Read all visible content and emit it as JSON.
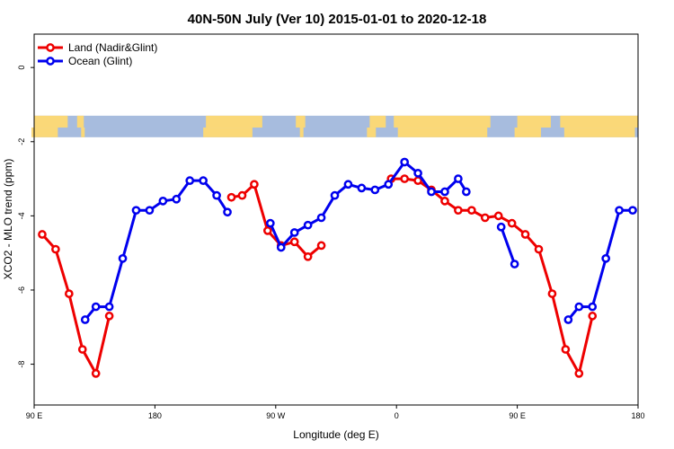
{
  "chart_data": {
    "type": "line",
    "title": "40N-50N July (Ver 10)   2015-01-01 to 2020-12-18",
    "xlabel": "Longitude (deg E)",
    "ylabel": "XCO2 - MLO trend (ppm)",
    "x_axis": {
      "range": [
        90,
        540
      ],
      "ticks": [
        {
          "x": 90,
          "label": "90 E"
        },
        {
          "x": 180,
          "label": "180"
        },
        {
          "x": 270,
          "label": "90 W"
        },
        {
          "x": 360,
          "label": "0"
        },
        {
          "x": 450,
          "label": "90 E"
        },
        {
          "x": 540,
          "label": "180"
        }
      ]
    },
    "y_axis": {
      "range": [
        -9.1,
        0.9
      ],
      "ticks": [
        0,
        -2,
        -4,
        -6,
        -8
      ]
    },
    "grid": false,
    "legend_position": "top-left",
    "map_strip": {
      "y_top": -1.3,
      "y_bottom": -1.88,
      "land_color": "#fad878",
      "ocean_color": "#a7bcde"
    },
    "series": [
      {
        "name": "Land (Nadir&Glint)",
        "color": "#ee0000",
        "points": [
          [
            [
              96,
              -4.5
            ],
            [
              106,
              -4.9
            ],
            [
              116,
              -6.1
            ],
            [
              126,
              -7.6
            ],
            [
              136,
              -8.25
            ],
            [
              146,
              -6.7
            ]
          ],
          [
            [
              237,
              -3.5
            ],
            [
              245,
              -3.45
            ],
            [
              254,
              -3.15
            ],
            [
              264,
              -4.4
            ],
            [
              274,
              -4.8
            ],
            [
              284,
              -4.7
            ],
            [
              294,
              -5.1
            ],
            [
              304,
              -4.8
            ]
          ],
          [
            [
              356,
              -3.0
            ],
            [
              366,
              -3.0
            ],
            [
              376,
              -3.05
            ],
            [
              386,
              -3.3
            ],
            [
              396,
              -3.6
            ],
            [
              406,
              -3.85
            ],
            [
              416,
              -3.85
            ],
            [
              426,
              -4.05
            ],
            [
              436,
              -4.0
            ],
            [
              446,
              -4.2
            ],
            [
              456,
              -4.5
            ],
            [
              466,
              -4.9
            ],
            [
              476,
              -6.1
            ],
            [
              486,
              -7.6
            ],
            [
              496,
              -8.25
            ],
            [
              506,
              -6.7
            ]
          ]
        ]
      },
      {
        "name": "Ocean (Glint)",
        "color": "#0000ee",
        "points": [
          [
            [
              128,
              -6.8
            ],
            [
              136,
              -6.45
            ],
            [
              146,
              -6.45
            ],
            [
              156,
              -5.15
            ],
            [
              166,
              -3.85
            ],
            [
              176,
              -3.85
            ],
            [
              186,
              -3.6
            ],
            [
              196,
              -3.55
            ],
            [
              206,
              -3.05
            ],
            [
              216,
              -3.05
            ],
            [
              226,
              -3.45
            ],
            [
              234,
              -3.9
            ]
          ],
          [
            [
              266,
              -4.2
            ],
            [
              274,
              -4.85
            ],
            [
              284,
              -4.45
            ],
            [
              294,
              -4.25
            ],
            [
              304,
              -4.05
            ],
            [
              314,
              -3.45
            ],
            [
              324,
              -3.15
            ],
            [
              334,
              -3.25
            ],
            [
              344,
              -3.3
            ],
            [
              354,
              -3.15
            ],
            [
              366,
              -2.55
            ],
            [
              376,
              -2.85
            ],
            [
              386,
              -3.35
            ],
            [
              396,
              -3.35
            ],
            [
              406,
              -3.0
            ],
            [
              412,
              -3.35
            ]
          ],
          [
            [
              438,
              -4.3
            ],
            [
              448,
              -5.3
            ]
          ],
          [
            [
              488,
              -6.8
            ],
            [
              496,
              -6.45
            ],
            [
              506,
              -6.45
            ],
            [
              516,
              -5.15
            ],
            [
              526,
              -3.85
            ],
            [
              536,
              -3.85
            ]
          ]
        ]
      }
    ]
  }
}
